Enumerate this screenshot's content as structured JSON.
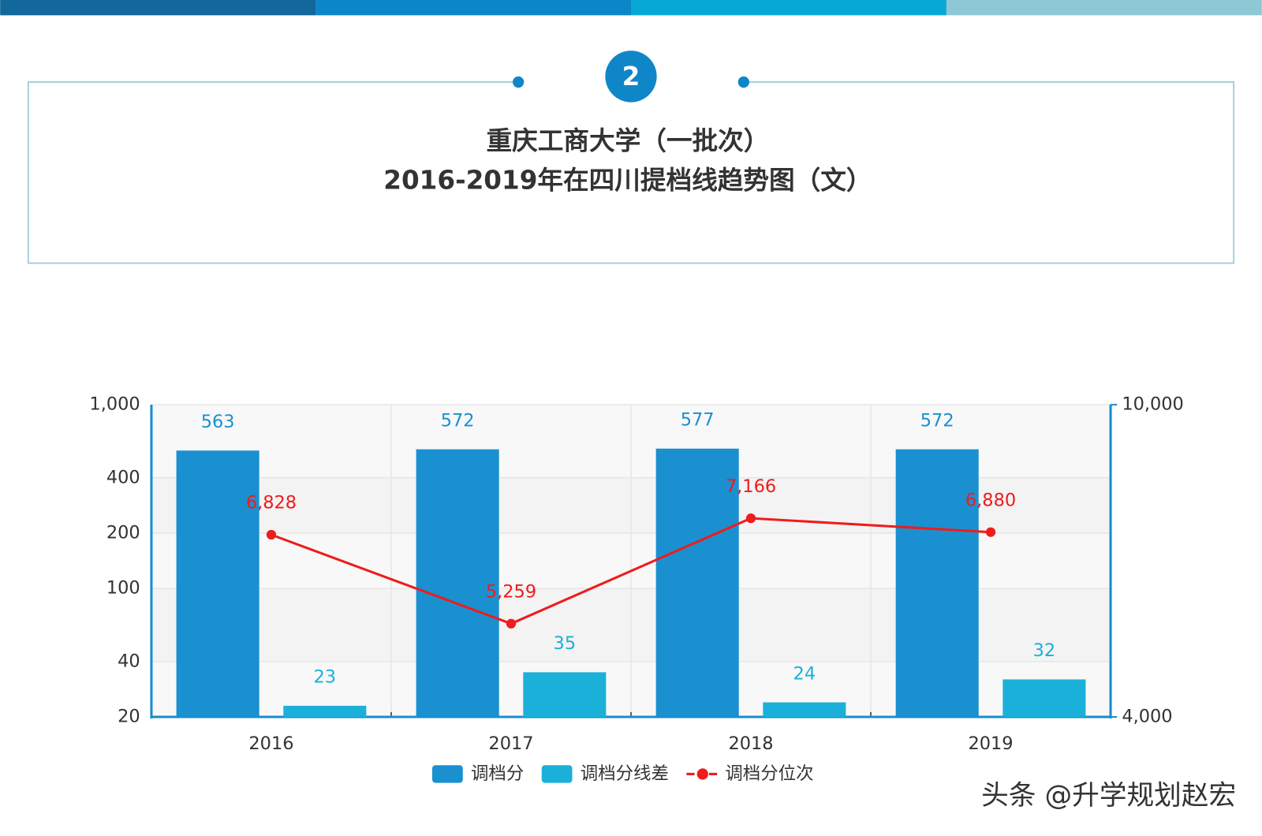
{
  "badge": "2",
  "watermark": "头条 @升学规划赵宏",
  "chart_data": {
    "type": "bar",
    "title": [
      "重庆工商大学（一批次）",
      "2016-2019年在四川提档线趋势图（文）"
    ],
    "categories": [
      "2016",
      "2017",
      "2018",
      "2019"
    ],
    "series": [
      {
        "name": "调档分",
        "type": "bar",
        "color": "#1a90d0",
        "values": [
          563,
          572,
          577,
          572
        ]
      },
      {
        "name": "调档分线差",
        "type": "bar",
        "color": "#1bb0d9",
        "values": [
          23,
          35,
          24,
          32
        ]
      },
      {
        "name": "调档分位次",
        "type": "line",
        "axis": "y2",
        "color": "#ee1c1c",
        "values": [
          6828,
          5259,
          7166,
          6880
        ],
        "value_labels": [
          "6,828",
          "5,259",
          "7,166",
          "6,880"
        ]
      }
    ],
    "ylim": [
      20,
      1000
    ],
    "ylog": true,
    "yticks": [
      20,
      40,
      100,
      200,
      400,
      {
        "value": 1000,
        "label": "1,000"
      }
    ],
    "y2lim": [
      4000,
      10000
    ],
    "y2log": true,
    "y2ticks": [
      {
        "value": 4000,
        "label": "4,000"
      },
      {
        "value": 10000,
        "label": "10,000"
      }
    ],
    "grid": true,
    "legend": "bottom"
  }
}
